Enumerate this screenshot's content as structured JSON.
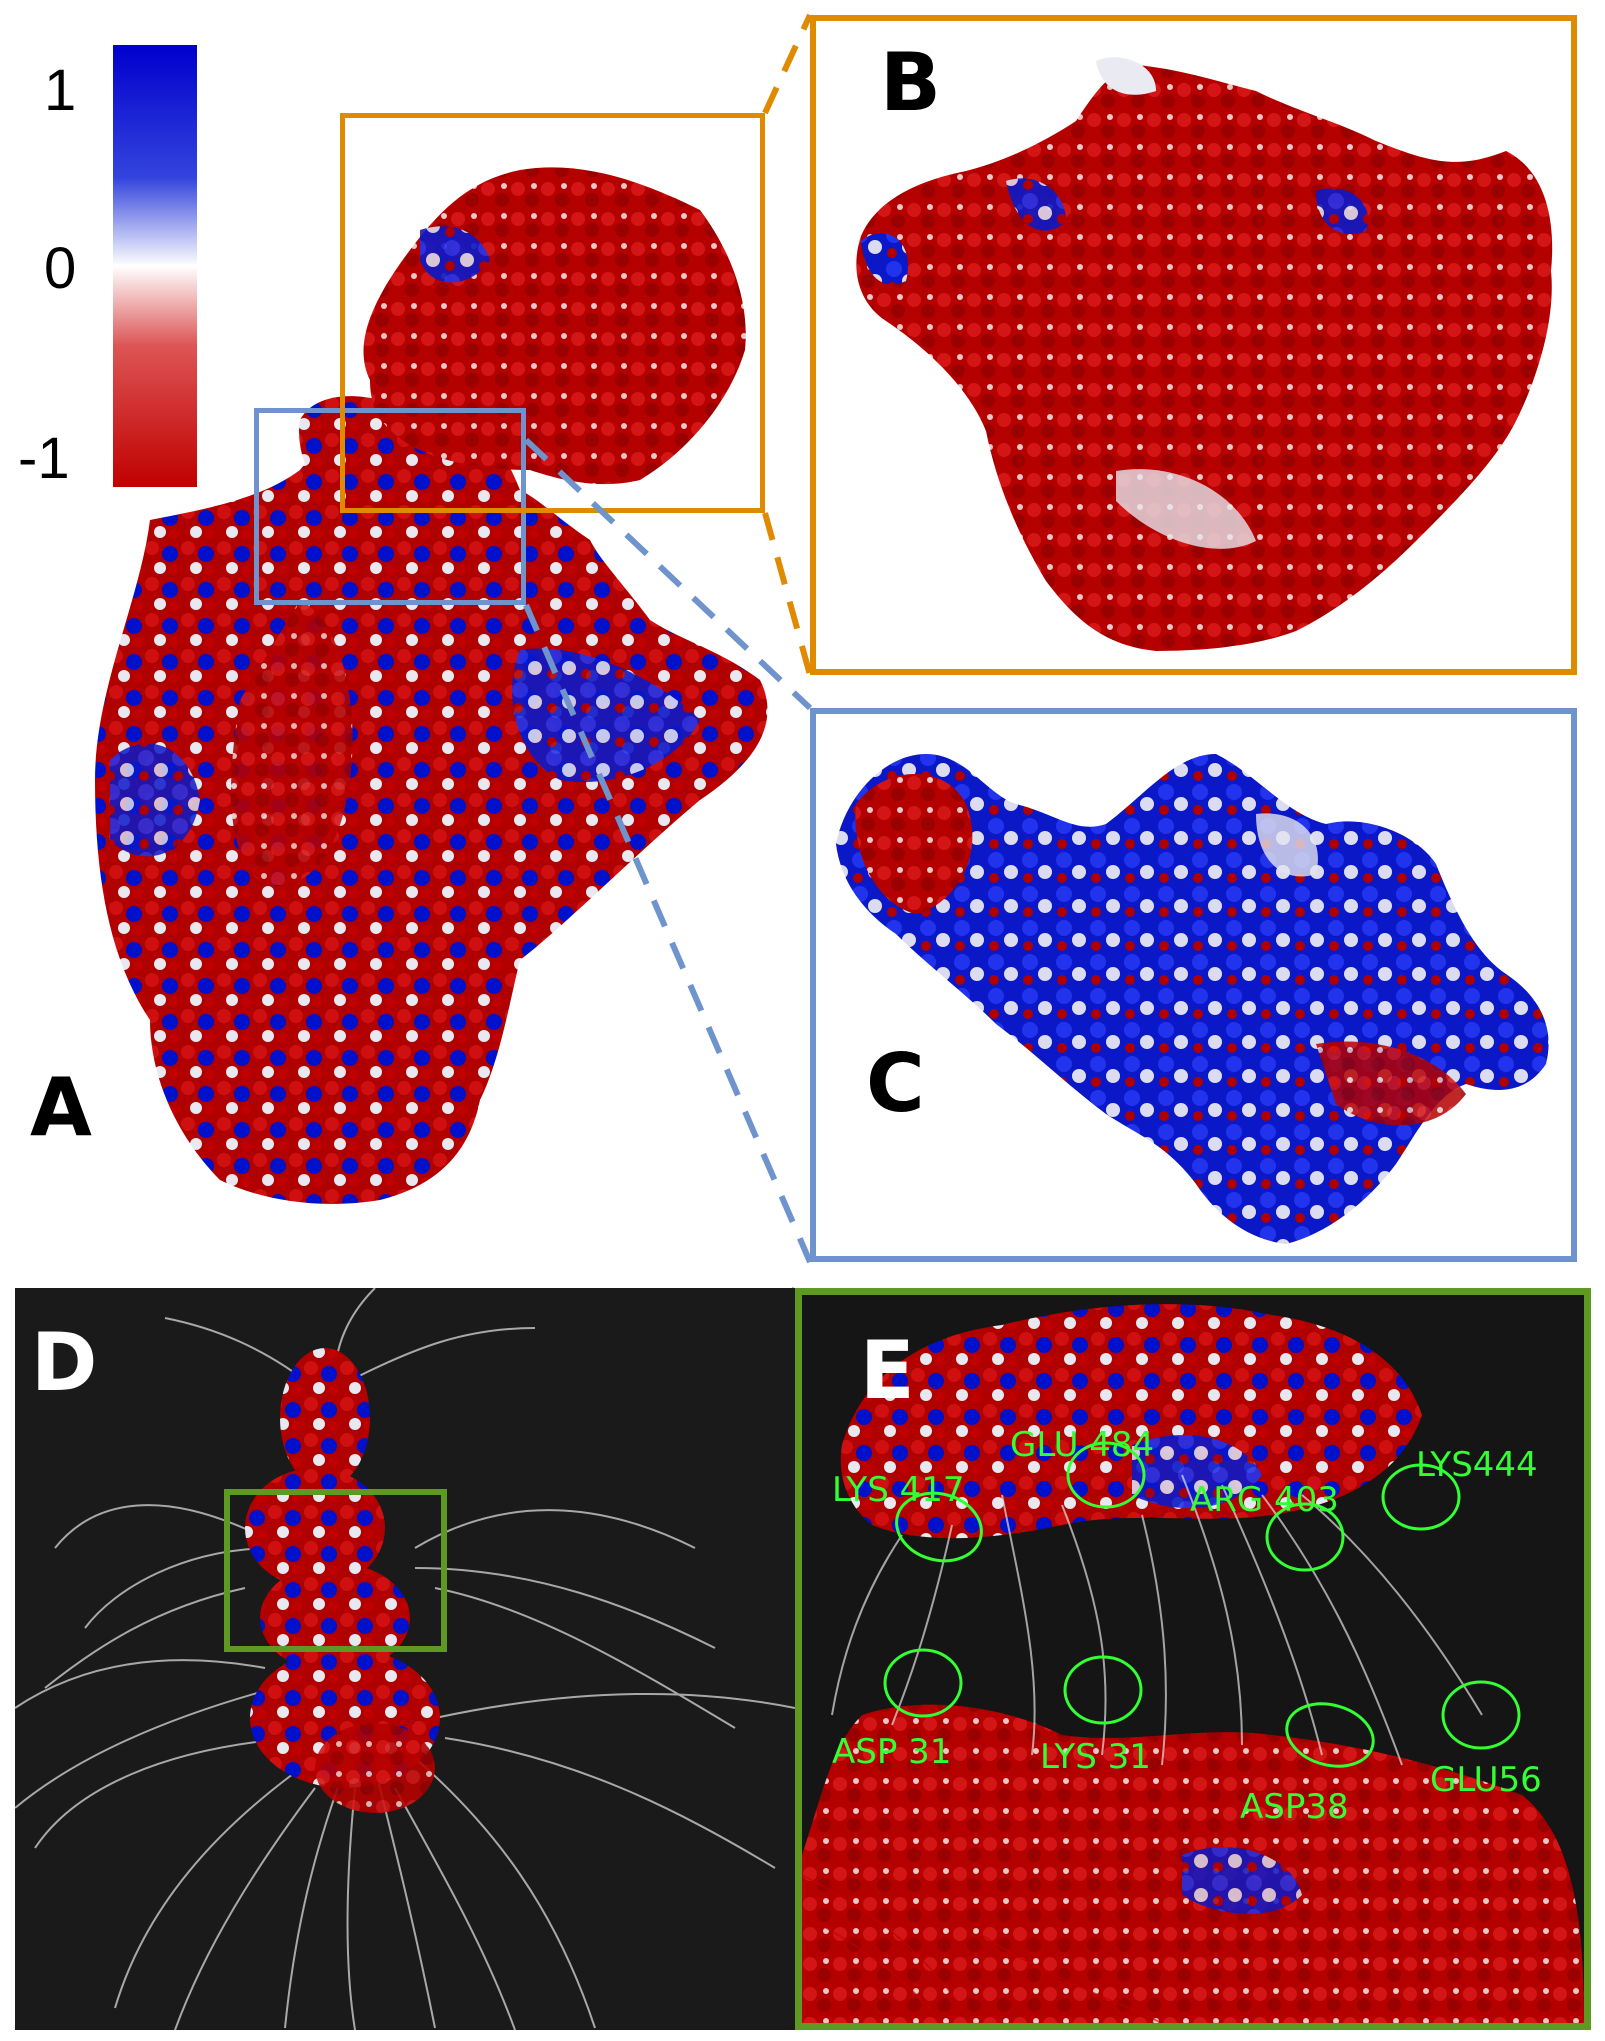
{
  "colorbar": {
    "max_label": "1",
    "mid_label": "0",
    "min_label": "-1",
    "colors": [
      "#0000cc",
      "#ffffff",
      "#c00000"
    ]
  },
  "panels": {
    "A": {
      "label": "A"
    },
    "B": {
      "label": "B",
      "frame_color": "#e08a00"
    },
    "C": {
      "label": "C",
      "frame_color": "#6f93cc"
    },
    "D": {
      "label": "D",
      "background": "#1a1a1a"
    },
    "E": {
      "label": "E",
      "frame_color": "#5e9a22"
    }
  },
  "residue_labels": {
    "glu484": "GLU 484",
    "lys417": "LYS 417",
    "arg403": "ARG 403",
    "lys444": "LYS444",
    "asp31": "ASP 31",
    "lys31": "LYS 31",
    "asp38": "ASP38",
    "glu56": "GLU56"
  },
  "colors": {
    "positive": "#0000cc",
    "neutral": "#ffffff",
    "negative": "#c00000",
    "field_lines": "#d8d8d8",
    "highlight_circles": "#33ff33"
  }
}
